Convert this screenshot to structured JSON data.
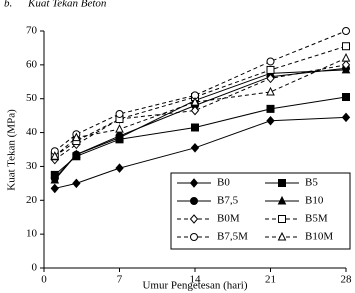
{
  "chart_data": {
    "type": "line",
    "label": "b.",
    "title": "Kuat Tekan Beton",
    "x_label": "Umur Pengetesan (hari)",
    "y_label": "Kuat Tekan (MPa)",
    "x": [
      1,
      3,
      7,
      14,
      21,
      28
    ],
    "xlim": [
      0,
      28
    ],
    "xticks": [
      0,
      7,
      14,
      21,
      28
    ],
    "ylim": [
      0,
      70
    ],
    "yticks": [
      0,
      10,
      20,
      30,
      40,
      50,
      60,
      70
    ],
    "series": [
      {
        "name": "B0",
        "color": "#000000",
        "marker": "diamond",
        "filled": true,
        "dashed": false,
        "values": [
          23.5,
          25,
          29.5,
          35.5,
          43.5,
          44.5
        ]
      },
      {
        "name": "B5",
        "color": "#000000",
        "marker": "square",
        "filled": true,
        "dashed": false,
        "values": [
          27.5,
          33,
          38,
          41.5,
          47,
          50.5
        ]
      },
      {
        "name": "B7,5",
        "color": "#000000",
        "marker": "circle",
        "filled": true,
        "dashed": false,
        "values": [
          26.5,
          33.5,
          39,
          48,
          56.5,
          59
        ]
      },
      {
        "name": "B10",
        "color": "#000000",
        "marker": "triangle",
        "filled": true,
        "dashed": false,
        "values": [
          26,
          33.5,
          38.5,
          49.5,
          57.5,
          58.5
        ]
      },
      {
        "name": "B0M",
        "color": "#000000",
        "marker": "diamond",
        "filled": false,
        "dashed": true,
        "values": [
          32,
          36.5,
          44,
          46.5,
          56,
          60
        ]
      },
      {
        "name": "B5M",
        "color": "#000000",
        "marker": "square",
        "filled": false,
        "dashed": true,
        "values": [
          33,
          37.5,
          44,
          50.5,
          58.5,
          65.5
        ]
      },
      {
        "name": "B7,5M",
        "color": "#000000",
        "marker": "circle",
        "filled": false,
        "dashed": true,
        "values": [
          34.5,
          39.5,
          45.5,
          51,
          61,
          70
        ]
      },
      {
        "name": "B10M",
        "color": "#000000",
        "marker": "triangle",
        "filled": false,
        "dashed": true,
        "values": [
          33,
          38.5,
          41,
          49,
          52,
          62
        ]
      }
    ]
  }
}
